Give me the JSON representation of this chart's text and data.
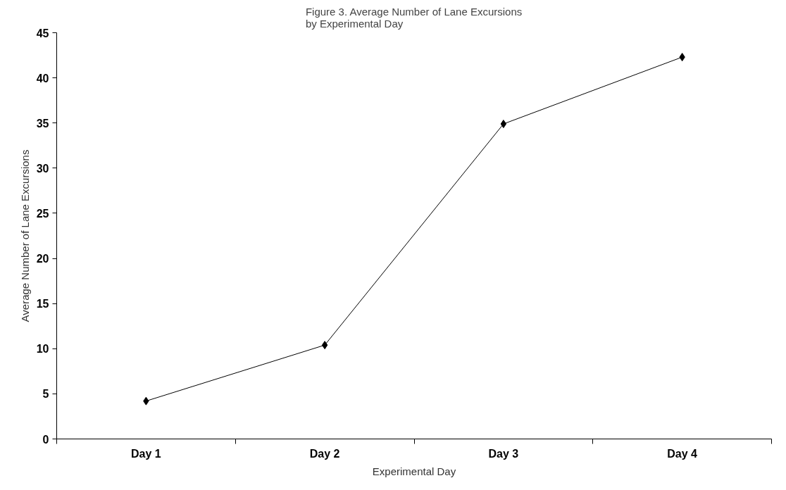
{
  "chart_data": {
    "type": "line",
    "title": "Figure 3. Average Number of Lane Excursions\nby Experimental Day",
    "xlabel": "Experimental Day",
    "ylabel": "Average Number of Lane Excursions",
    "categories": [
      "Day 1",
      "Day 2",
      "Day 3",
      "Day 4"
    ],
    "series": [
      {
        "color": "#000000",
        "values": [
          4.2,
          10.4,
          34.9,
          42.3
        ]
      }
    ],
    "ylim": [
      0,
      45
    ],
    "yticks": [
      0,
      5,
      10,
      15,
      20,
      25,
      30,
      35,
      40,
      45
    ],
    "grid": false,
    "marker": "diamond",
    "line_style": "solid"
  }
}
